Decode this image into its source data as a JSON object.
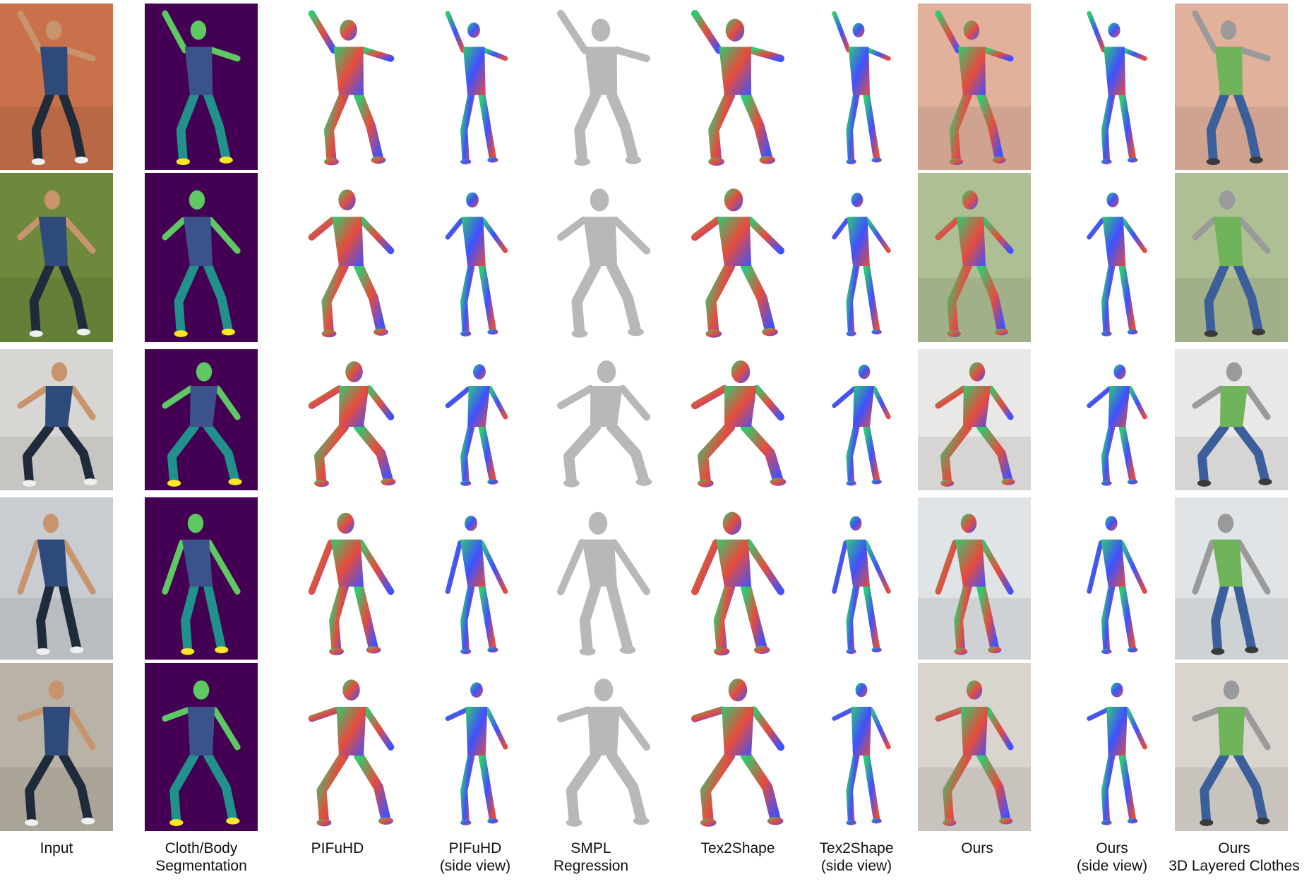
{
  "columns": [
    {
      "kind": "photo",
      "label_lines": [
        "Input",
        ""
      ]
    },
    {
      "kind": "seg",
      "label_lines": [
        "Cloth/Body",
        "Segmentation"
      ]
    },
    {
      "kind": "normal",
      "label_lines": [
        "PIFuHD",
        ""
      ]
    },
    {
      "kind": "normal",
      "label_lines": [
        "PIFuHD",
        "(side view)"
      ]
    },
    {
      "kind": "smpl",
      "label_lines": [
        "SMPL",
        "Regression"
      ]
    },
    {
      "kind": "normal",
      "label_lines": [
        "Tex2Shape",
        ""
      ]
    },
    {
      "kind": "normal",
      "label_lines": [
        "Tex2Shape",
        "(side view)"
      ]
    },
    {
      "kind": "overlay",
      "label_lines": [
        "Ours",
        ""
      ]
    },
    {
      "kind": "normal",
      "label_lines": [
        "Ours",
        "(side view)"
      ]
    },
    {
      "kind": "clothes",
      "label_lines": [
        "Ours",
        "3D Layered Clothes"
      ]
    }
  ],
  "rows": [
    {
      "scene": "tennis court",
      "bg": "#c8714a"
    },
    {
      "scene": "soccer field",
      "bg": "#6d8a3c"
    },
    {
      "scene": "living room sofa",
      "bg": "#d8d6d2"
    },
    {
      "scene": "bright living room",
      "bg": "#c9cdd2"
    },
    {
      "scene": "grey sofa",
      "bg": "#b9b2a6"
    }
  ],
  "colors": {
    "seg_background": "#440154",
    "seg_upper": "#3b528b",
    "seg_lower": "#21918c",
    "seg_skin": "#5ec962",
    "seg_shoes": "#fde725",
    "smpl_grey": "#b8b8b8",
    "normal_a": "#2ecc71",
    "normal_b": "#e74c3c",
    "normal_c": "#3f51ff",
    "clothes_top": "#6fb35a",
    "clothes_bottom": "#3a5f9a"
  }
}
